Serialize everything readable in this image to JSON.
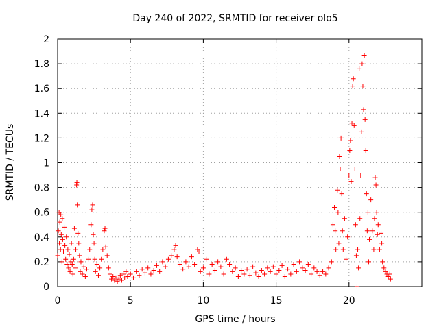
{
  "chart_data": {
    "type": "scatter",
    "title": "Day 240 of 2022, SRMTID for receiver olo5",
    "xlabel": "GPS time / hours",
    "ylabel": "SRMTID / TECUs",
    "xlim": [
      0,
      25
    ],
    "ylim": [
      0,
      2
    ],
    "xticks": [
      0,
      5,
      10,
      15,
      20
    ],
    "xtick_labels": [
      "0",
      "5",
      "10",
      "15",
      "20"
    ],
    "yticks": [
      0,
      0.2,
      0.4,
      0.6,
      0.8,
      1,
      1.2,
      1.4,
      1.6,
      1.8,
      2
    ],
    "ytick_labels": [
      "0",
      "0.2",
      "0.4",
      "0.6",
      "0.8",
      "1",
      "1.2",
      "1.4",
      "1.6",
      "1.8",
      "2"
    ],
    "grid": true,
    "marker": "+",
    "color": "#ff0000",
    "series": [
      {
        "name": "SRMTID",
        "points": [
          [
            0.0,
            0.25
          ],
          [
            0.05,
            0.45
          ],
          [
            0.1,
            0.6
          ],
          [
            0.12,
            0.35
          ],
          [
            0.15,
            0.52
          ],
          [
            0.2,
            0.3
          ],
          [
            0.22,
            0.58
          ],
          [
            0.25,
            0.42
          ],
          [
            0.3,
            0.2
          ],
          [
            0.32,
            0.55
          ],
          [
            0.35,
            0.38
          ],
          [
            0.4,
            0.28
          ],
          [
            0.45,
            0.48
          ],
          [
            0.5,
            0.33
          ],
          [
            0.55,
            0.22
          ],
          [
            0.6,
            0.4
          ],
          [
            0.65,
            0.18
          ],
          [
            0.7,
            0.3
          ],
          [
            0.75,
            0.15
          ],
          [
            0.8,
            0.26
          ],
          [
            0.85,
            0.12
          ],
          [
            0.9,
            0.2
          ],
          [
            0.95,
            0.35
          ],
          [
            1.0,
            0.18
          ],
          [
            1.05,
            0.1
          ],
          [
            1.1,
            0.22
          ],
          [
            1.15,
            0.47
          ],
          [
            1.2,
            0.15
          ],
          [
            1.25,
            0.3
          ],
          [
            1.3,
            0.82
          ],
          [
            1.32,
            0.84
          ],
          [
            1.35,
            0.66
          ],
          [
            1.4,
            0.43
          ],
          [
            1.45,
            0.35
          ],
          [
            1.5,
            0.25
          ],
          [
            1.55,
            0.12
          ],
          [
            1.6,
            0.2
          ],
          [
            1.7,
            0.1
          ],
          [
            1.8,
            0.16
          ],
          [
            1.9,
            0.08
          ],
          [
            2.0,
            0.14
          ],
          [
            2.1,
            0.22
          ],
          [
            2.2,
            0.3
          ],
          [
            2.3,
            0.5
          ],
          [
            2.35,
            0.62
          ],
          [
            2.4,
            0.66
          ],
          [
            2.45,
            0.42
          ],
          [
            2.5,
            0.35
          ],
          [
            2.55,
            0.22
          ],
          [
            2.6,
            0.12
          ],
          [
            2.7,
            0.18
          ],
          [
            2.8,
            0.09
          ],
          [
            2.9,
            0.15
          ],
          [
            3.0,
            0.22
          ],
          [
            3.1,
            0.3
          ],
          [
            3.2,
            0.45
          ],
          [
            3.25,
            0.47
          ],
          [
            3.3,
            0.32
          ],
          [
            3.4,
            0.25
          ],
          [
            3.5,
            0.15
          ],
          [
            3.6,
            0.1
          ],
          [
            3.7,
            0.06
          ],
          [
            3.8,
            0.08
          ],
          [
            3.9,
            0.05
          ],
          [
            4.0,
            0.07
          ],
          [
            4.1,
            0.04
          ],
          [
            4.2,
            0.06
          ],
          [
            4.3,
            0.09
          ],
          [
            4.4,
            0.05
          ],
          [
            4.5,
            0.1
          ],
          [
            4.6,
            0.07
          ],
          [
            4.7,
            0.12
          ],
          [
            4.8,
            0.08
          ],
          [
            5.0,
            0.1
          ],
          [
            5.2,
            0.07
          ],
          [
            5.4,
            0.12
          ],
          [
            5.6,
            0.09
          ],
          [
            5.8,
            0.14
          ],
          [
            6.0,
            0.11
          ],
          [
            6.2,
            0.15
          ],
          [
            6.4,
            0.1
          ],
          [
            6.6,
            0.13
          ],
          [
            6.8,
            0.17
          ],
          [
            7.0,
            0.12
          ],
          [
            7.2,
            0.2
          ],
          [
            7.4,
            0.16
          ],
          [
            7.6,
            0.22
          ],
          [
            7.8,
            0.25
          ],
          [
            8.0,
            0.3
          ],
          [
            8.1,
            0.33
          ],
          [
            8.2,
            0.24
          ],
          [
            8.4,
            0.18
          ],
          [
            8.6,
            0.14
          ],
          [
            8.8,
            0.2
          ],
          [
            9.0,
            0.16
          ],
          [
            9.2,
            0.24
          ],
          [
            9.4,
            0.18
          ],
          [
            9.6,
            0.3
          ],
          [
            9.7,
            0.28
          ],
          [
            9.8,
            0.12
          ],
          [
            10.0,
            0.15
          ],
          [
            10.2,
            0.22
          ],
          [
            10.4,
            0.1
          ],
          [
            10.6,
            0.18
          ],
          [
            10.8,
            0.13
          ],
          [
            11.0,
            0.2
          ],
          [
            11.2,
            0.16
          ],
          [
            11.4,
            0.1
          ],
          [
            11.6,
            0.22
          ],
          [
            11.8,
            0.18
          ],
          [
            12.0,
            0.12
          ],
          [
            12.2,
            0.15
          ],
          [
            12.4,
            0.08
          ],
          [
            12.6,
            0.13
          ],
          [
            12.8,
            0.1
          ],
          [
            13.0,
            0.14
          ],
          [
            13.2,
            0.09
          ],
          [
            13.4,
            0.16
          ],
          [
            13.6,
            0.11
          ],
          [
            13.8,
            0.08
          ],
          [
            14.0,
            0.13
          ],
          [
            14.2,
            0.1
          ],
          [
            14.4,
            0.15
          ],
          [
            14.6,
            0.12
          ],
          [
            14.8,
            0.16
          ],
          [
            15.0,
            0.1
          ],
          [
            15.2,
            0.13
          ],
          [
            15.4,
            0.17
          ],
          [
            15.6,
            0.08
          ],
          [
            15.8,
            0.14
          ],
          [
            16.0,
            0.1
          ],
          [
            16.2,
            0.18
          ],
          [
            16.4,
            0.12
          ],
          [
            16.6,
            0.2
          ],
          [
            16.8,
            0.15
          ],
          [
            17.0,
            0.13
          ],
          [
            17.2,
            0.18
          ],
          [
            17.4,
            0.1
          ],
          [
            17.6,
            0.15
          ],
          [
            17.8,
            0.12
          ],
          [
            18.0,
            0.09
          ],
          [
            18.2,
            0.12
          ],
          [
            18.4,
            0.1
          ],
          [
            18.6,
            0.15
          ],
          [
            18.8,
            0.2
          ],
          [
            18.9,
            0.5
          ],
          [
            19.0,
            0.64
          ],
          [
            19.05,
            0.45
          ],
          [
            19.1,
            0.3
          ],
          [
            19.2,
            0.78
          ],
          [
            19.25,
            0.6
          ],
          [
            19.3,
            0.35
          ],
          [
            19.35,
            1.05
          ],
          [
            19.4,
            0.95
          ],
          [
            19.45,
            1.2
          ],
          [
            19.5,
            0.75
          ],
          [
            19.55,
            0.45
          ],
          [
            19.6,
            0.3
          ],
          [
            19.7,
            0.55
          ],
          [
            19.8,
            0.22
          ],
          [
            19.9,
            0.4
          ],
          [
            20.0,
            0.9
          ],
          [
            20.05,
            1.1
          ],
          [
            20.1,
            1.18
          ],
          [
            20.15,
            0.85
          ],
          [
            20.2,
            1.32
          ],
          [
            20.25,
            1.62
          ],
          [
            20.3,
            1.68
          ],
          [
            20.35,
            1.3
          ],
          [
            20.4,
            0.95
          ],
          [
            20.45,
            0.5
          ],
          [
            20.5,
            0.25
          ],
          [
            20.55,
            0.0
          ],
          [
            20.6,
            0.3
          ],
          [
            20.65,
            0.15
          ],
          [
            20.7,
            1.76
          ],
          [
            20.75,
            0.55
          ],
          [
            20.8,
            0.9
          ],
          [
            20.85,
            1.25
          ],
          [
            20.9,
            1.8
          ],
          [
            20.95,
            1.62
          ],
          [
            21.0,
            1.43
          ],
          [
            21.05,
            1.87
          ],
          [
            21.1,
            1.35
          ],
          [
            21.15,
            1.1
          ],
          [
            21.2,
            0.75
          ],
          [
            21.25,
            0.45
          ],
          [
            21.3,
            0.6
          ],
          [
            21.35,
            0.2
          ],
          [
            21.4,
            0.38
          ],
          [
            21.5,
            0.7
          ],
          [
            21.6,
            0.45
          ],
          [
            21.7,
            0.3
          ],
          [
            21.75,
            0.55
          ],
          [
            21.8,
            0.88
          ],
          [
            21.85,
            0.82
          ],
          [
            21.9,
            0.6
          ],
          [
            21.95,
            0.42
          ],
          [
            22.0,
            0.5
          ],
          [
            22.1,
            0.3
          ],
          [
            22.2,
            0.43
          ],
          [
            22.25,
            0.35
          ],
          [
            22.3,
            0.2
          ],
          [
            22.4,
            0.15
          ],
          [
            22.5,
            0.12
          ],
          [
            22.6,
            0.1
          ],
          [
            22.7,
            0.08
          ],
          [
            22.8,
            0.1
          ],
          [
            22.85,
            0.06
          ]
        ]
      }
    ]
  }
}
